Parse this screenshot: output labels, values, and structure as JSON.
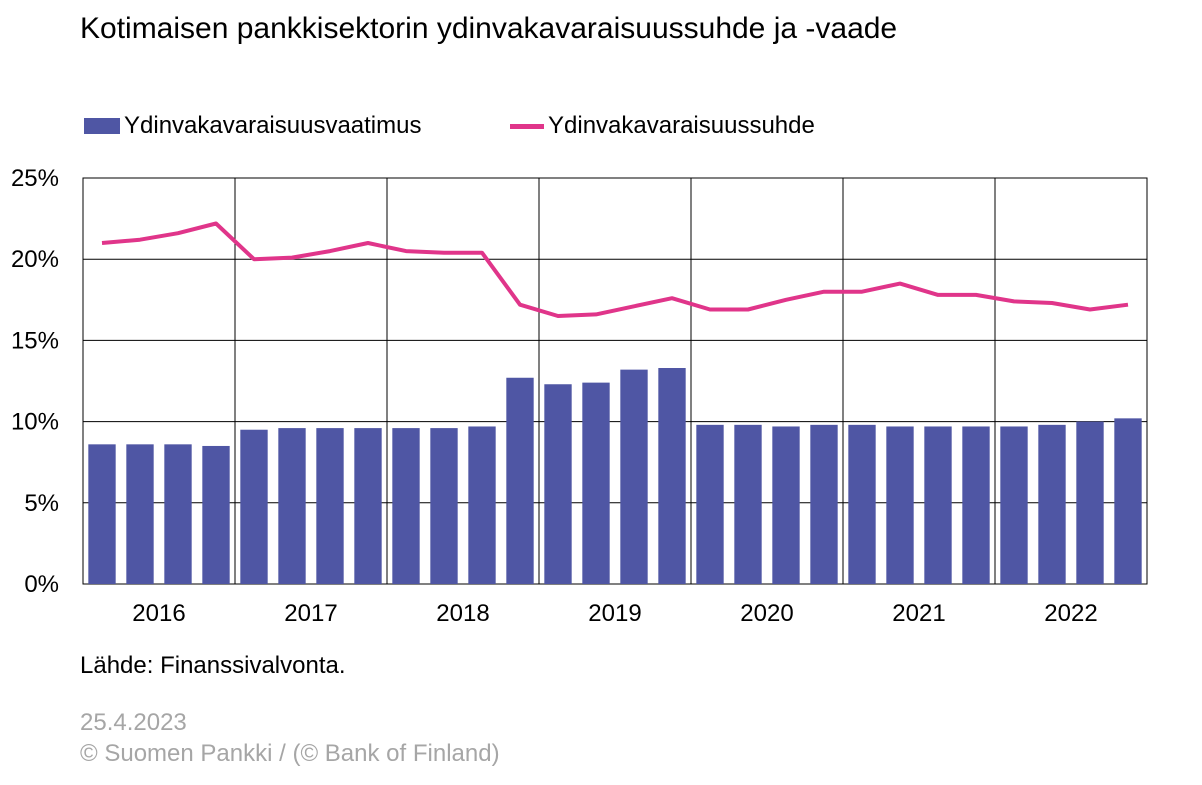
{
  "title": "Kotimaisen pankkisektorin ydinvakavaraisuussuhde ja -vaade",
  "colors": {
    "bar": "#4F56A4",
    "line": "#E0358A",
    "footer": "#A6A6A6",
    "grid": "#000000"
  },
  "source": "Lähde: Finanssivalvonta.",
  "date": "25.4.2023",
  "copyright": "© Suomen Pankki / (© Bank of Finland)",
  "chart_data": {
    "type": "bar+line",
    "title": "Kotimaisen pankkisektorin ydinvakavaraisuussuhde ja -vaade",
    "xlabel": "",
    "ylabel": "",
    "ylim": [
      0,
      25
    ],
    "yticks": [
      "0%",
      "5%",
      "10%",
      "15%",
      "20%",
      "25%"
    ],
    "grid": true,
    "legend": "top",
    "years": [
      "2016",
      "2017",
      "2018",
      "2019",
      "2020",
      "2021",
      "2022"
    ],
    "quarters_per_year": 4,
    "series": [
      {
        "name": "Ydinvakavaraisuusvaatimus",
        "type": "bar",
        "values": [
          8.6,
          8.6,
          8.6,
          8.5,
          9.5,
          9.6,
          9.6,
          9.6,
          9.6,
          9.6,
          9.7,
          12.7,
          12.3,
          12.4,
          13.2,
          13.3,
          9.8,
          9.8,
          9.7,
          9.8,
          9.8,
          9.7,
          9.7,
          9.7,
          9.7,
          9.8,
          10.0,
          10.2
        ]
      },
      {
        "name": "Ydinvakavaraisuussuhde",
        "type": "line",
        "values": [
          21.0,
          21.2,
          21.6,
          22.2,
          20.0,
          20.1,
          20.5,
          21.0,
          20.5,
          20.4,
          20.4,
          17.2,
          16.5,
          16.6,
          17.1,
          17.6,
          16.9,
          16.9,
          17.5,
          18.0,
          18.0,
          18.5,
          17.8,
          17.8,
          17.4,
          17.3,
          16.9,
          17.2
        ]
      }
    ]
  }
}
